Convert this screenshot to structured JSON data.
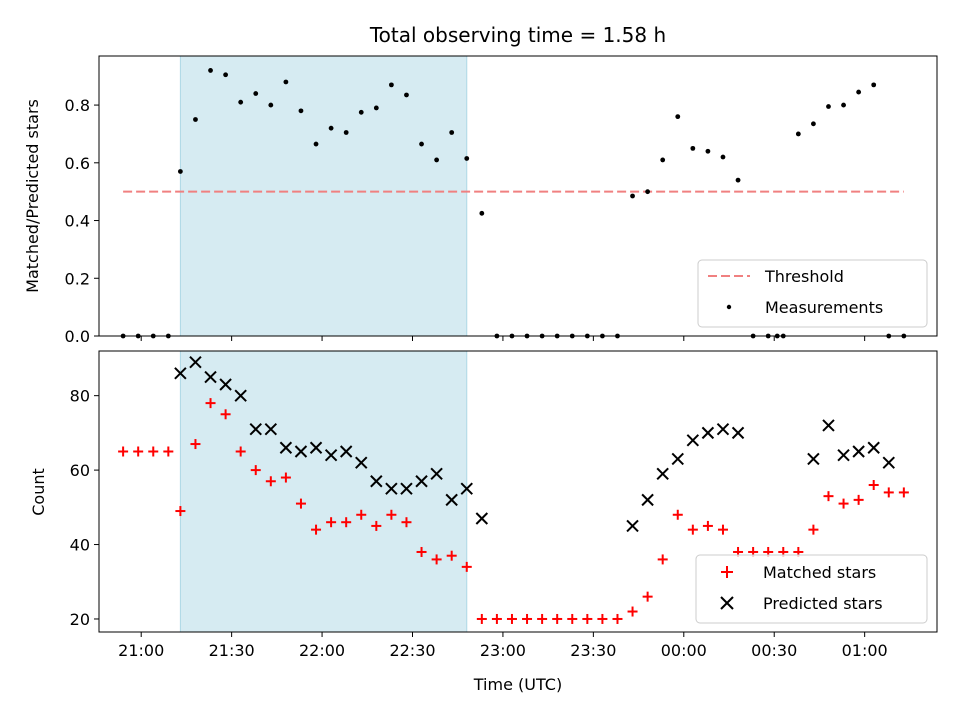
{
  "chart_data": [
    {
      "type": "scatter",
      "title": "Total observing time = 1.58 h",
      "xlabel": "",
      "ylabel": "Matched/Predicted stars",
      "xlim": [
        "20:46",
        "01:24"
      ],
      "ylim": [
        0,
        0.97
      ],
      "shaded_region": {
        "start": "21:13",
        "end": "22:48",
        "color": "#add8e6"
      },
      "series": [
        {
          "name": "Measurements",
          "kind": "scatter",
          "color": "#000000",
          "x": [
            "20:54",
            "20:59",
            "21:04",
            "21:09",
            "21:13",
            "21:18",
            "21:23",
            "21:28",
            "21:33",
            "21:38",
            "21:43",
            "21:48",
            "21:53",
            "21:58",
            "22:03",
            "22:08",
            "22:13",
            "22:18",
            "22:23",
            "22:28",
            "22:33",
            "22:38",
            "22:43",
            "22:48",
            "22:53",
            "22:58",
            "23:03",
            "23:08",
            "23:13",
            "23:18",
            "23:23",
            "23:28",
            "23:33",
            "23:38",
            "23:43",
            "23:48",
            "23:53",
            "23:58",
            "00:03",
            "00:08",
            "00:13",
            "00:18",
            "00:23",
            "00:28",
            "00:31",
            "00:33",
            "00:38",
            "00:43",
            "00:48",
            "00:53",
            "00:58",
            "01:03",
            "01:08",
            "01:13"
          ],
          "y": [
            0,
            0,
            0,
            0,
            0.57,
            0.75,
            0.92,
            0.905,
            0.81,
            0.84,
            0.8,
            0.88,
            0.78,
            0.665,
            0.72,
            0.705,
            0.775,
            0.79,
            0.87,
            0.835,
            0.665,
            0.61,
            0.705,
            0.615,
            0.425,
            0,
            0,
            0,
            0,
            0,
            0,
            0,
            0,
            0,
            0.485,
            0.5,
            0.61,
            0.76,
            0.65,
            0.64,
            0.62,
            0.54,
            0,
            0,
            0,
            0,
            0.7,
            0.735,
            0.795,
            0.8,
            0.845,
            0.87,
            0,
            0
          ]
        },
        {
          "name": "Threshold",
          "kind": "line",
          "style": "dashed",
          "color": "#f08080",
          "x": [
            "20:54",
            "01:13"
          ],
          "y": [
            0.5,
            0.5
          ]
        }
      ],
      "yticks": [
        0.0,
        0.2,
        0.4,
        0.6,
        0.8
      ],
      "ytick_labels": [
        "0.0",
        "0.2",
        "0.4",
        "0.6",
        "0.8"
      ],
      "legend": {
        "placement": "lower right",
        "entries": [
          "Threshold",
          "Measurements"
        ]
      }
    },
    {
      "type": "scatter",
      "title": "",
      "xlabel": "Time (UTC)",
      "ylabel": "Count",
      "xlim": [
        "20:46",
        "01:24"
      ],
      "ylim": [
        16.5,
        92
      ],
      "shaded_region": {
        "start": "21:13",
        "end": "22:48",
        "color": "#add8e6"
      },
      "xticks": [
        "21:00",
        "21:30",
        "22:00",
        "22:30",
        "23:00",
        "23:30",
        "00:00",
        "00:30",
        "01:00"
      ],
      "yticks": [
        20,
        40,
        60,
        80
      ],
      "ytick_labels": [
        "20",
        "40",
        "60",
        "80"
      ],
      "series": [
        {
          "name": "Matched stars",
          "marker": "+",
          "color": "#ff0000",
          "x": [
            "20:54",
            "20:59",
            "21:04",
            "21:09",
            "21:13",
            "21:18",
            "21:23",
            "21:28",
            "21:33",
            "21:38",
            "21:43",
            "21:48",
            "21:53",
            "21:58",
            "22:03",
            "22:08",
            "22:13",
            "22:18",
            "22:23",
            "22:28",
            "22:33",
            "22:38",
            "22:43",
            "22:48",
            "22:53",
            "22:58",
            "23:03",
            "23:08",
            "23:13",
            "23:18",
            "23:23",
            "23:28",
            "23:33",
            "23:38",
            "23:43",
            "23:48",
            "23:53",
            "23:58",
            "00:03",
            "00:08",
            "00:13",
            "00:18",
            "00:23",
            "00:28",
            "00:33",
            "00:38",
            "00:43",
            "00:48",
            "00:53",
            "00:58",
            "01:03",
            "01:08",
            "01:13"
          ],
          "y": [
            65,
            65,
            65,
            65,
            49,
            67,
            78,
            75,
            65,
            60,
            57,
            58,
            51,
            44,
            46,
            46,
            48,
            45,
            48,
            46,
            38,
            36,
            37,
            34,
            20,
            20,
            20,
            20,
            20,
            20,
            20,
            20,
            20,
            20,
            22,
            26,
            36,
            48,
            44,
            45,
            44,
            38,
            38,
            38,
            38,
            38,
            44,
            53,
            51,
            52,
            56,
            54,
            54
          ]
        },
        {
          "name": "Predicted stars",
          "marker": "x",
          "color": "#000000",
          "x": [
            "21:13",
            "21:18",
            "21:23",
            "21:28",
            "21:33",
            "21:38",
            "21:43",
            "21:48",
            "21:53",
            "21:58",
            "22:03",
            "22:08",
            "22:13",
            "22:18",
            "22:23",
            "22:28",
            "22:33",
            "22:38",
            "22:43",
            "22:48",
            "22:53",
            "23:43",
            "23:48",
            "23:53",
            "23:58",
            "00:03",
            "00:08",
            "00:13",
            "00:18",
            "00:43",
            "00:48",
            "00:53",
            "00:58",
            "01:03",
            "01:08"
          ],
          "y": [
            86,
            89,
            85,
            83,
            80,
            71,
            71,
            66,
            65,
            66,
            64,
            65,
            62,
            57,
            55,
            55,
            57,
            59,
            52,
            55,
            47,
            45,
            52,
            59,
            63,
            68,
            70,
            71,
            70,
            63,
            72,
            64,
            65,
            66,
            62
          ]
        }
      ],
      "legend": {
        "placement": "lower right",
        "entries": [
          "Matched stars",
          "Predicted stars"
        ]
      }
    }
  ]
}
